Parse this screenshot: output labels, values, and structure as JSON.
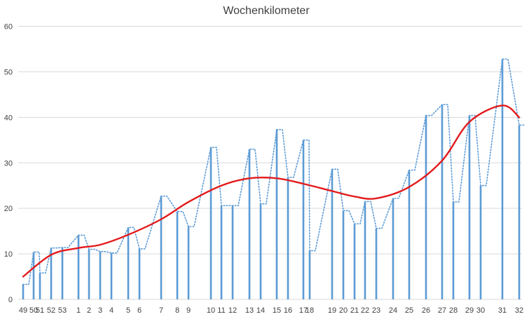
{
  "chart_data": {
    "type": "bar",
    "title": "Wochenkilometer",
    "xlabel": "",
    "ylabel": "",
    "ylim": [
      0,
      60
    ],
    "y_ticks": [
      0,
      10,
      20,
      30,
      40,
      50,
      60
    ],
    "grid": true,
    "legend": "none",
    "x_tick_labels": [
      "49",
      "50",
      "51",
      "52",
      "53",
      "1",
      "2",
      "3",
      "4",
      "5",
      "6",
      "7",
      "8",
      "9",
      "10",
      "11",
      "12",
      "13",
      "14",
      "15",
      "16",
      "17",
      "18",
      "19",
      "20",
      "21",
      "22",
      "23",
      "24",
      "25",
      "26",
      "27",
      "28",
      "29",
      "30",
      "31",
      "32"
    ],
    "points": [
      {
        "x": "49",
        "value": 3.3
      },
      {
        "x": "50",
        "value": 10.4
      },
      {
        "x": "51",
        "value": 5.8
      },
      {
        "x": "52",
        "value": 11.3
      },
      {
        "x": "53",
        "value": 11.4
      },
      {
        "x": "1",
        "value": 14.1
      },
      {
        "x": "2",
        "value": 11.0
      },
      {
        "x": "3",
        "value": 10.5
      },
      {
        "x": "4",
        "value": 10.2
      },
      {
        "x": "5",
        "value": 15.8
      },
      {
        "x": "6",
        "value": 11.1
      },
      {
        "x": "7",
        "value": 22.7
      },
      {
        "x": "8",
        "value": 19.3
      },
      {
        "x": "9",
        "value": 16.0
      },
      {
        "x": "10",
        "value": 33.4
      },
      {
        "x": "11",
        "value": 20.6
      },
      {
        "x": "12",
        "value": 20.6
      },
      {
        "x": "13",
        "value": 33.0
      },
      {
        "x": "14",
        "value": 21.0
      },
      {
        "x": "15",
        "value": 37.3
      },
      {
        "x": "16",
        "value": 26.8
      },
      {
        "x": "17",
        "value": 35.0
      },
      {
        "x": "18",
        "value": 10.7
      },
      {
        "x": "19",
        "value": 28.6
      },
      {
        "x": "20",
        "value": 19.5
      },
      {
        "x": "21",
        "value": 16.6
      },
      {
        "x": "22",
        "value": 21.5
      },
      {
        "x": "23",
        "value": 15.6
      },
      {
        "x": "24",
        "value": 22.2
      },
      {
        "x": "25",
        "value": 28.4
      },
      {
        "x": "26",
        "value": 40.4
      },
      {
        "x": "27",
        "value": 42.8
      },
      {
        "x": "28",
        "value": 21.4
      },
      {
        "x": "29",
        "value": 40.4
      },
      {
        "x": "30",
        "value": 25.0
      },
      {
        "x": "31",
        "value": 52.8
      },
      {
        "x": "32",
        "value": 38.3
      }
    ],
    "trend_points": [
      {
        "x": "49",
        "value": 5.0
      },
      {
        "x": "52",
        "value": 9.8
      },
      {
        "x": "1",
        "value": 11.3
      },
      {
        "x": "3",
        "value": 12.0
      },
      {
        "x": "5",
        "value": 14.2
      },
      {
        "x": "7",
        "value": 17.6
      },
      {
        "x": "9",
        "value": 21.4
      },
      {
        "x": "11",
        "value": 25.0
      },
      {
        "x": "13",
        "value": 26.6
      },
      {
        "x": "15",
        "value": 26.6
      },
      {
        "x": "17",
        "value": 25.4
      },
      {
        "x": "19",
        "value": 23.8
      },
      {
        "x": "21",
        "value": 22.6
      },
      {
        "x": "23",
        "value": 22.2
      },
      {
        "x": "25",
        "value": 24.7
      },
      {
        "x": "27",
        "value": 30.5
      },
      {
        "x": "29",
        "value": 39.0
      },
      {
        "x": "31",
        "value": 42.6
      },
      {
        "x": "32",
        "value": 40.0
      }
    ],
    "colors": {
      "bars": "#5b9bd5",
      "dotted_line": "#5b9bd5",
      "trend": "#e31a1c",
      "grid": "#d9d9d9",
      "text": "#404040"
    }
  }
}
